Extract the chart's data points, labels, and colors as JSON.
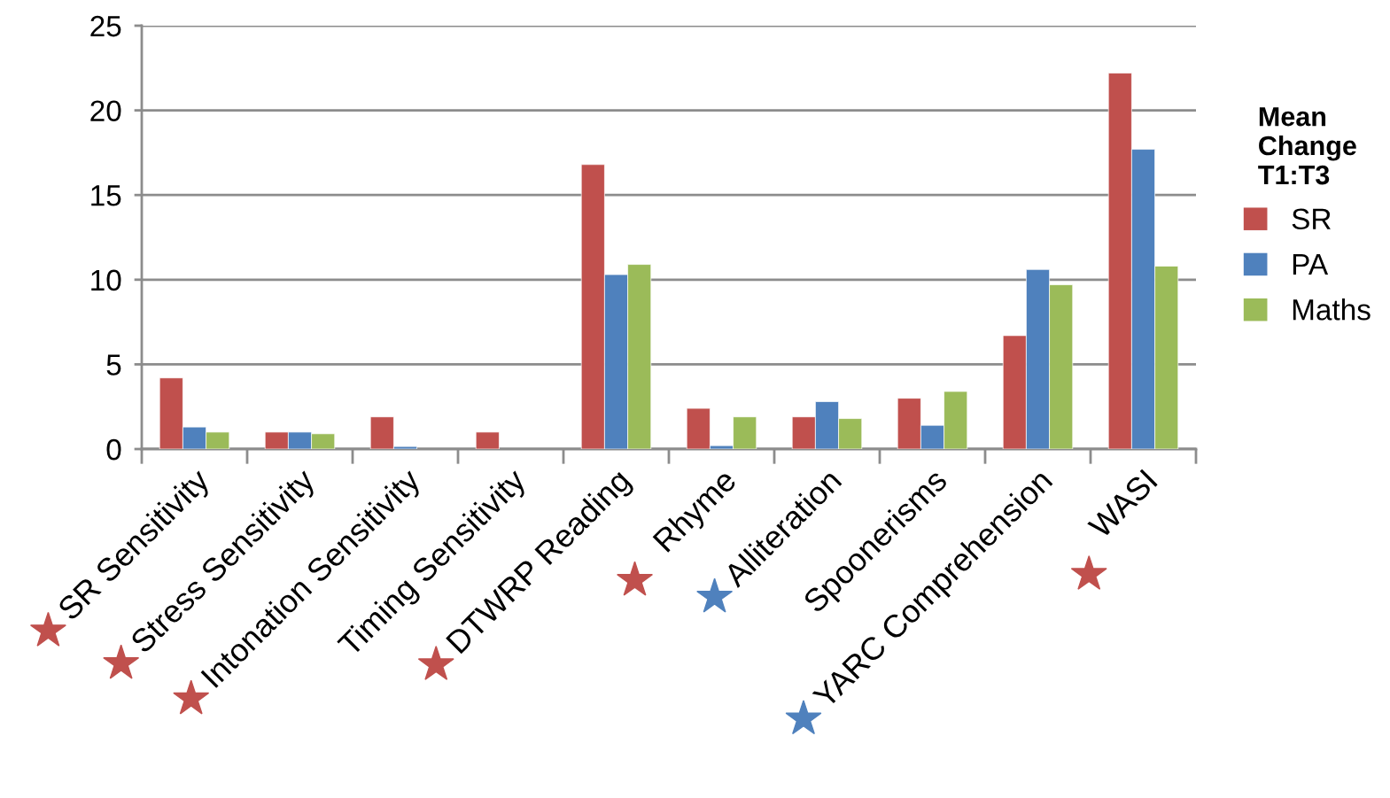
{
  "chart_data": {
    "type": "bar",
    "categories": [
      "SR Sensitivity",
      "Stress Sensitivity",
      "Intonation Sensitivity",
      "Timing Sensitivity",
      "DTWRP Reading",
      "Rhyme",
      "Alliteration",
      "Spoonerisms",
      "YARC Comprehension",
      "WASI"
    ],
    "series": [
      {
        "name": "SR",
        "color": "#c0504d",
        "values": [
          4.2,
          1.0,
          1.9,
          1.0,
          16.8,
          2.4,
          1.9,
          3.0,
          6.7,
          22.2
        ]
      },
      {
        "name": "PA",
        "color": "#4f81bd",
        "values": [
          1.3,
          1.0,
          0.15,
          null,
          10.3,
          0.2,
          2.8,
          1.4,
          10.6,
          17.7
        ]
      },
      {
        "name": "Maths",
        "color": "#9bbb59",
        "values": [
          1.0,
          0.9,
          null,
          null,
          10.9,
          1.9,
          1.8,
          3.4,
          9.7,
          10.8
        ]
      }
    ],
    "legend_title": "Mean\nChange\nT1:T3",
    "legend": "right",
    "ylim": [
      0,
      25
    ],
    "yticks": [
      0,
      5,
      10,
      15,
      20,
      25
    ],
    "grid": "y"
  }
}
